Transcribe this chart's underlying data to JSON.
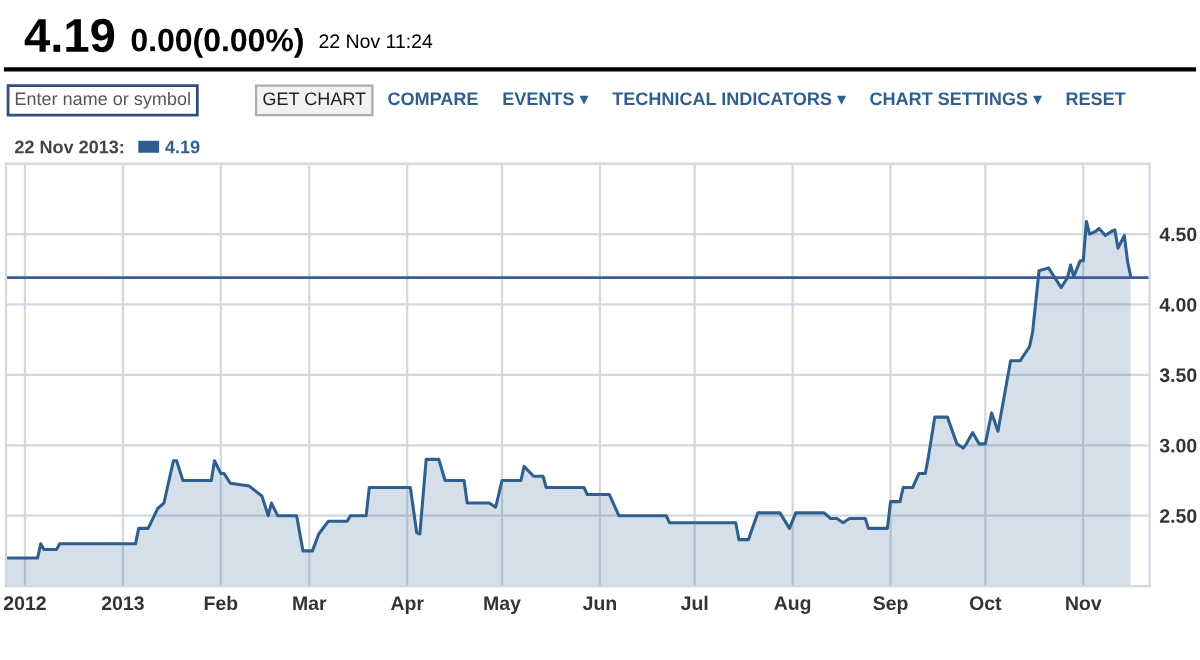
{
  "chart_data": {
    "type": "area",
    "title": "4.19",
    "subtitle": "0.00(0.00%)",
    "annotations": [
      "22 Nov 11:24",
      "Enter name or symbol",
      "GET CHART",
      "COMPARE",
      "EVENTS ▾",
      "TECHNICAL INDICATORS ▾",
      "CHART SETTINGS ▾",
      "RESET"
    ],
    "legend_title": "22 Nov 2013:",
    "series": [
      {
        "name": "4.19",
        "color": "#2f5f8f",
        "x": [
          "2012-11-25",
          "2012-12-05",
          "2012-12-06",
          "2012-12-07",
          "2012-12-11",
          "2012-12-12",
          "2013-01-05",
          "2013-01-06",
          "2013-01-09",
          "2013-01-12",
          "2013-01-14",
          "2013-01-17",
          "2013-01-18",
          "2013-01-20",
          "2013-01-29",
          "2013-01-30",
          "2013-02-01",
          "2013-02-02",
          "2013-02-04",
          "2013-02-10",
          "2013-02-14",
          "2013-02-16",
          "2013-02-17",
          "2013-02-19",
          "2013-02-25",
          "2013-02-27",
          "2013-03-02",
          "2013-03-04",
          "2013-03-07",
          "2013-03-13",
          "2013-03-14",
          "2013-03-19",
          "2013-03-20",
          "2013-04-02",
          "2013-04-04",
          "2013-04-05",
          "2013-04-07",
          "2013-04-11",
          "2013-04-13",
          "2013-04-19",
          "2013-04-20",
          "2013-04-27",
          "2013-04-29",
          "2013-05-01",
          "2013-05-07",
          "2013-05-08",
          "2013-05-11",
          "2013-05-14",
          "2013-05-15",
          "2013-05-27",
          "2013-05-28",
          "2013-06-04",
          "2013-06-07",
          "2013-06-22",
          "2013-06-23",
          "2013-07-14",
          "2013-07-15",
          "2013-07-18",
          "2013-07-21",
          "2013-07-28",
          "2013-07-31",
          "2013-08-02",
          "2013-08-11",
          "2013-08-13",
          "2013-08-15",
          "2013-08-17",
          "2013-08-19",
          "2013-08-24",
          "2013-08-25",
          "2013-08-31",
          "2013-09-01",
          "2013-09-04",
          "2013-09-05",
          "2013-09-08",
          "2013-09-10",
          "2013-09-12",
          "2013-09-13",
          "2013-09-15",
          "2013-09-19",
          "2013-09-22",
          "2013-09-24",
          "2013-09-25",
          "2013-09-27",
          "2013-09-29",
          "2013-10-01",
          "2013-10-02",
          "2013-10-03",
          "2013-10-05",
          "2013-10-09",
          "2013-10-12",
          "2013-10-15",
          "2013-10-16",
          "2013-10-18",
          "2013-10-21",
          "2013-10-25",
          "2013-10-27",
          "2013-10-28",
          "2013-10-29",
          "2013-10-31",
          "2013-11-01",
          "2013-11-02",
          "2013-11-03",
          "2013-11-05",
          "2013-11-06",
          "2013-11-08",
          "2013-11-10",
          "2013-11-11",
          "2013-11-12",
          "2013-11-14",
          "2013-11-15",
          "2013-11-16"
        ],
        "values": [
          2.2,
          2.2,
          2.3,
          2.26,
          2.26,
          2.3,
          2.3,
          2.41,
          2.41,
          2.55,
          2.59,
          2.89,
          2.89,
          2.75,
          2.75,
          2.89,
          2.8,
          2.8,
          2.73,
          2.71,
          2.64,
          2.5,
          2.59,
          2.5,
          2.5,
          2.25,
          2.25,
          2.37,
          2.46,
          2.46,
          2.5,
          2.5,
          2.7,
          2.7,
          2.38,
          2.37,
          2.9,
          2.9,
          2.75,
          2.75,
          2.59,
          2.59,
          2.56,
          2.75,
          2.75,
          2.85,
          2.78,
          2.78,
          2.7,
          2.7,
          2.65,
          2.65,
          2.5,
          2.5,
          2.45,
          2.45,
          2.33,
          2.33,
          2.52,
          2.52,
          2.41,
          2.52,
          2.52,
          2.48,
          2.48,
          2.45,
          2.48,
          2.48,
          2.41,
          2.41,
          2.6,
          2.6,
          2.7,
          2.7,
          2.8,
          2.8,
          2.92,
          3.2,
          3.2,
          3.01,
          2.98,
          3.01,
          3.09,
          3.01,
          3.01,
          3.12,
          3.23,
          3.1,
          3.6,
          3.6,
          3.7,
          3.81,
          4.24,
          4.26,
          4.12,
          4.19,
          4.28,
          4.2,
          4.31,
          4.31,
          4.59,
          4.5,
          4.52,
          4.54,
          4.49,
          4.52,
          4.53,
          4.4,
          4.49,
          4.31,
          4.2
        ]
      }
    ],
    "ref_lines": [
      {
        "axis": "y",
        "value": 4.19,
        "color": "#3a5a9a"
      }
    ],
    "xlim": [
      "2012-11-25",
      "2013-11-22"
    ],
    "xticks": [
      {
        "value": "2012-12-01",
        "label": "2012"
      },
      {
        "value": "2013-01-01",
        "label": "2013"
      },
      {
        "value": "2013-02-01",
        "label": "Feb"
      },
      {
        "value": "2013-03-01",
        "label": "Mar"
      },
      {
        "value": "2013-04-01",
        "label": "Apr"
      },
      {
        "value": "2013-05-01",
        "label": "May"
      },
      {
        "value": "2013-06-01",
        "label": "Jun"
      },
      {
        "value": "2013-07-01",
        "label": "Jul"
      },
      {
        "value": "2013-08-01",
        "label": "Aug"
      },
      {
        "value": "2013-09-01",
        "label": "Sep"
      },
      {
        "value": "2013-10-01",
        "label": "Oct"
      },
      {
        "value": "2013-11-01",
        "label": "Nov"
      }
    ],
    "ylim": [
      2.0,
      5.0
    ],
    "yticks": [
      {
        "value": 2.5,
        "label": "2.50"
      },
      {
        "value": 3.0,
        "label": "3.00"
      },
      {
        "value": 3.5,
        "label": "3.50"
      },
      {
        "value": 4.0,
        "label": "4.00"
      },
      {
        "value": 4.5,
        "label": "4.50"
      },
      {
        "value": 5.0,
        "label": null
      }
    ],
    "grid": true,
    "legend": "top left"
  }
}
